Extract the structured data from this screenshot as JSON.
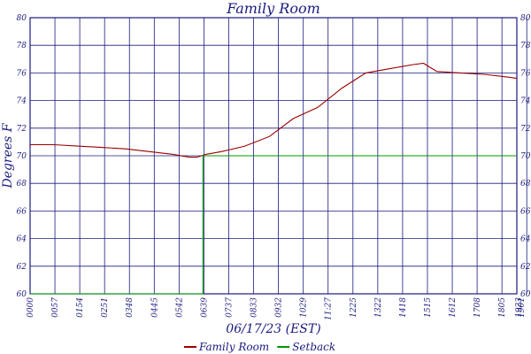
{
  "chart_data": {
    "type": "line",
    "title": "Family Room",
    "xlabel": "06/17/23 (EST)",
    "ylabel": "Degrees F",
    "ylim": [
      60,
      80
    ],
    "yticks": [
      60,
      62,
      64,
      66,
      68,
      70,
      72,
      74,
      76,
      78,
      80
    ],
    "xlim": [
      "00:00",
      "19:23"
    ],
    "xticks": [
      "0000",
      "0057",
      "0154",
      "0251",
      "0348",
      "0445",
      "0542",
      "0639",
      "0737",
      "0833",
      "0932",
      "1029",
      "11:27",
      "1225",
      "1322",
      "1418",
      "1515",
      "1612",
      "1708",
      "1805",
      "1901",
      "1923"
    ],
    "grid": true,
    "legend": {
      "position": "bottom"
    },
    "series": [
      {
        "name": "Family Room",
        "color": "#990000",
        "x": [
          "00:00",
          "00:57",
          "01:54",
          "02:51",
          "03:48",
          "04:45",
          "05:42",
          "06:20",
          "06:39",
          "07:00",
          "07:37",
          "08:33",
          "09:32",
          "10:29",
          "11:27",
          "12:25",
          "13:22",
          "14:18",
          "15:15",
          "15:40",
          "16:12",
          "17:08",
          "18:05",
          "19:01",
          "19:23"
        ],
        "values": [
          70.8,
          70.8,
          70.7,
          70.6,
          70.5,
          70.3,
          70.1,
          69.9,
          69.9,
          70.1,
          70.3,
          70.7,
          71.4,
          72.7,
          73.5,
          74.9,
          76.0,
          76.3,
          76.6,
          76.7,
          76.1,
          76.0,
          75.9,
          75.7,
          75.6
        ]
      },
      {
        "name": "Setback",
        "color": "#009900",
        "x": [
          "00:00",
          "06:53",
          "06:53",
          "19:23"
        ],
        "values": [
          60,
          60,
          70,
          70
        ]
      }
    ]
  }
}
